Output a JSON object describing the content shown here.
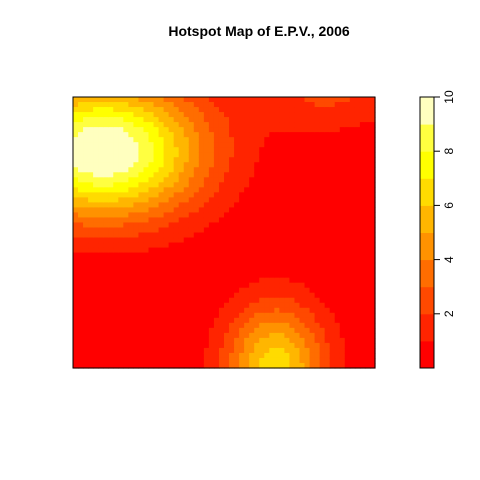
{
  "chart_data": {
    "type": "heatmap",
    "title": "Hotspot Map of E.P.V., 2006",
    "xlabel": "",
    "ylabel": "",
    "axes_shown": false,
    "value_range": [
      0,
      10
    ],
    "levels": [
      0,
      1,
      2,
      3,
      4,
      5,
      6,
      7,
      8,
      9,
      10
    ],
    "level_colors": [
      "#FF0000",
      "#FF2400",
      "#FF4900",
      "#FF6D00",
      "#FF9200",
      "#FFB600",
      "#FFDB00",
      "#FFFF00",
      "#FFFF40",
      "#FFFFBF"
    ],
    "legend": {
      "placement": "right",
      "ticks": [
        "2",
        "4",
        "6",
        "8",
        "10"
      ],
      "tick_values": [
        2,
        4,
        6,
        8,
        10
      ]
    },
    "hotspots": [
      {
        "cx": 0.1,
        "cy": 0.8,
        "peak": 10.3,
        "sx": 0.33,
        "sy": 0.25
      },
      {
        "cx": 0.67,
        "cy": 0.0,
        "peak": 6.6,
        "sx": 0.17,
        "sy": 0.24
      },
      {
        "cx": 0.85,
        "cy": 1.05,
        "peak": 2.4,
        "sx": 0.25,
        "sy": 0.18
      }
    ]
  }
}
